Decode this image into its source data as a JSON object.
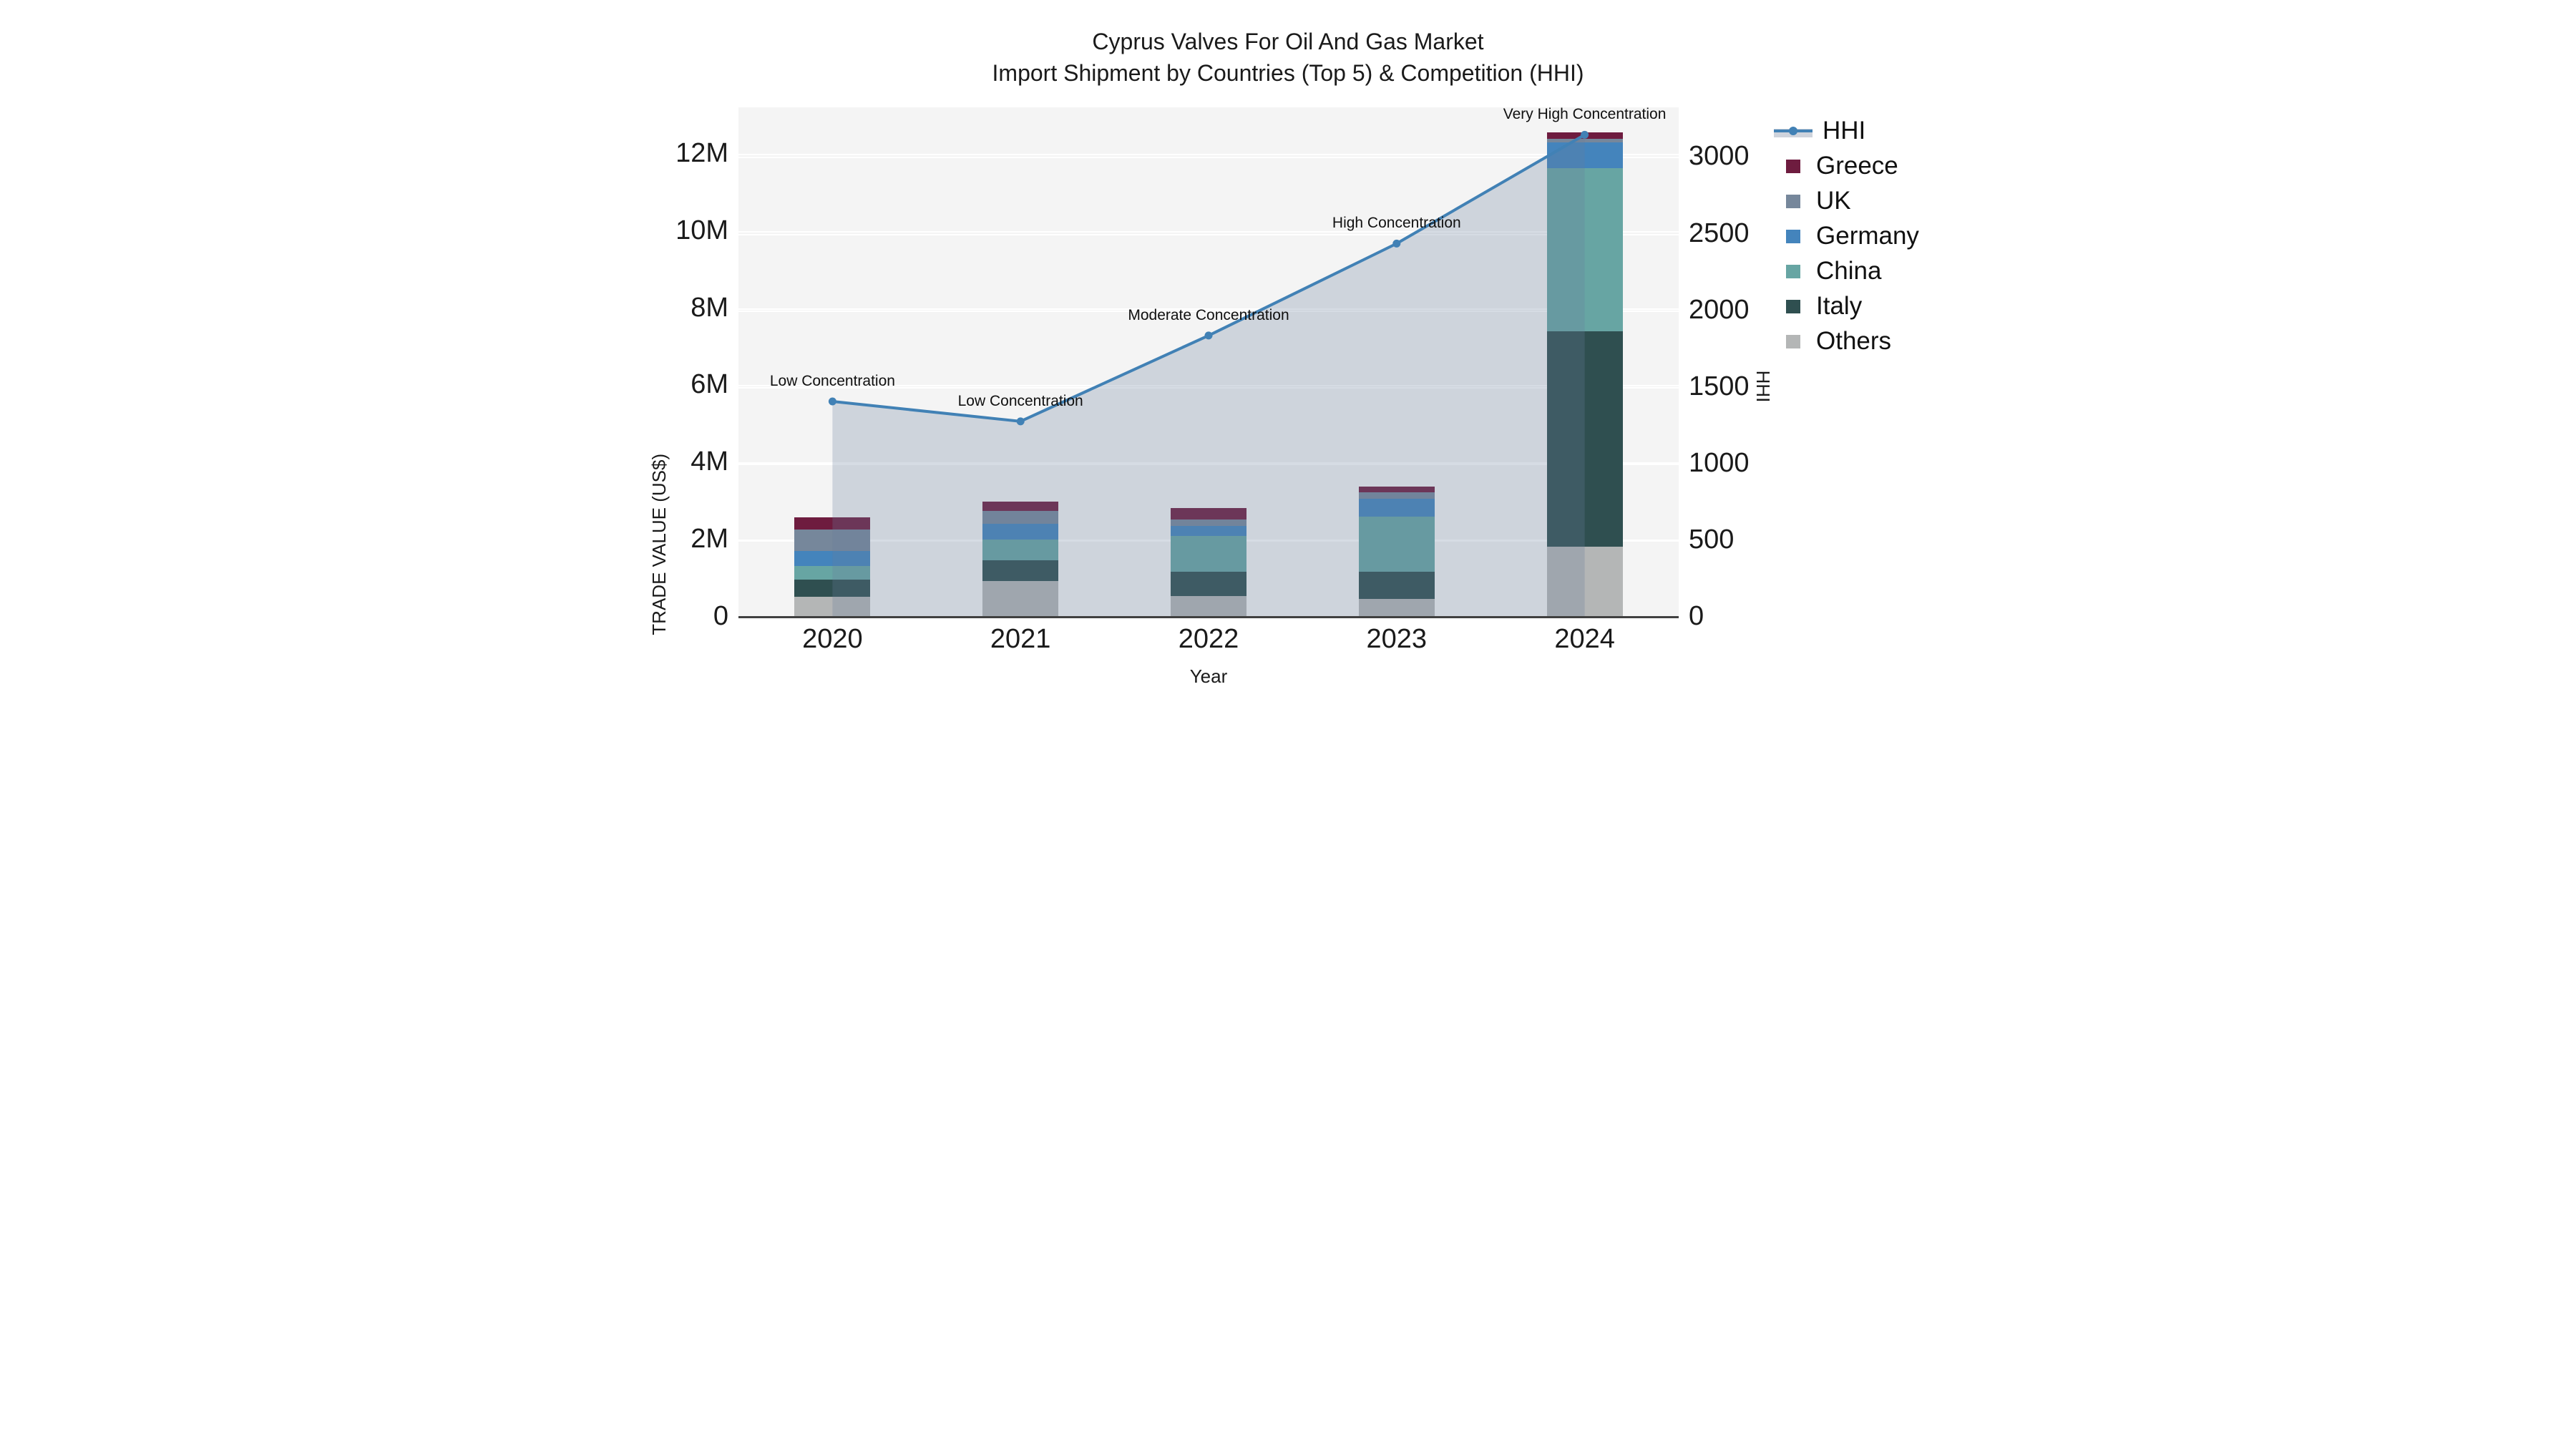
{
  "title": "Cyprus Valves For Oil And Gas Market",
  "subtitle": "Import Shipment by Countries (Top 5) & Competition (HHI)",
  "chart_data": {
    "type": "combo-stacked-bar-line",
    "categories": [
      "2020",
      "2021",
      "2022",
      "2023",
      "2024"
    ],
    "bar_value_unit": "million US$",
    "series": [
      {
        "name": "Others",
        "color": "#b4b6b6",
        "values": [
          0.53,
          0.94,
          0.56,
          0.49,
          1.84
        ]
      },
      {
        "name": "Italy",
        "color": "#2f4f50",
        "values": [
          0.45,
          0.55,
          0.63,
          0.69,
          5.57
        ]
      },
      {
        "name": "China",
        "color": "#67a5a3",
        "values": [
          0.35,
          0.54,
          0.92,
          1.44,
          4.23
        ]
      },
      {
        "name": "Germany",
        "color": "#4484bc",
        "values": [
          0.4,
          0.4,
          0.26,
          0.46,
          0.68
        ]
      },
      {
        "name": "UK",
        "color": "#76879b",
        "values": [
          0.56,
          0.33,
          0.17,
          0.17,
          0.09
        ]
      },
      {
        "name": "Greece",
        "color": "#6e1c3f",
        "values": [
          0.3,
          0.24,
          0.3,
          0.15,
          0.16
        ]
      }
    ],
    "line_series": {
      "name": "HHI",
      "color": "#4181b5",
      "area_fill_color": "rgba(105,125,155,0.27)",
      "values": [
        1410,
        1280,
        1840,
        2440,
        3150
      ]
    },
    "annotations": [
      "Low Concentration",
      "Low Concentration",
      "Moderate Concentration",
      "High Concentration",
      "Very High Concentration"
    ],
    "left_axis": {
      "label": "TRADE VALUE (US$)",
      "ticks": [
        "0",
        "2M",
        "4M",
        "6M",
        "8M",
        "10M",
        "12M"
      ],
      "tick_values": [
        0,
        2,
        4,
        6,
        8,
        10,
        12
      ],
      "max": 13.22
    },
    "right_axis": {
      "label": "HHI",
      "ticks": [
        "0",
        "500",
        "1000",
        "1500",
        "2000",
        "2500",
        "3000"
      ],
      "tick_values": [
        0,
        500,
        1000,
        1500,
        2000,
        2500,
        3000
      ],
      "max": 3329
    },
    "x_axis": {
      "label": "Year"
    },
    "legend_order": [
      "HHI",
      "Greece",
      "UK",
      "Germany",
      "China",
      "Italy",
      "Others"
    ],
    "legend_position": "right",
    "grid": true,
    "plot_background": "#f4f4f4"
  }
}
